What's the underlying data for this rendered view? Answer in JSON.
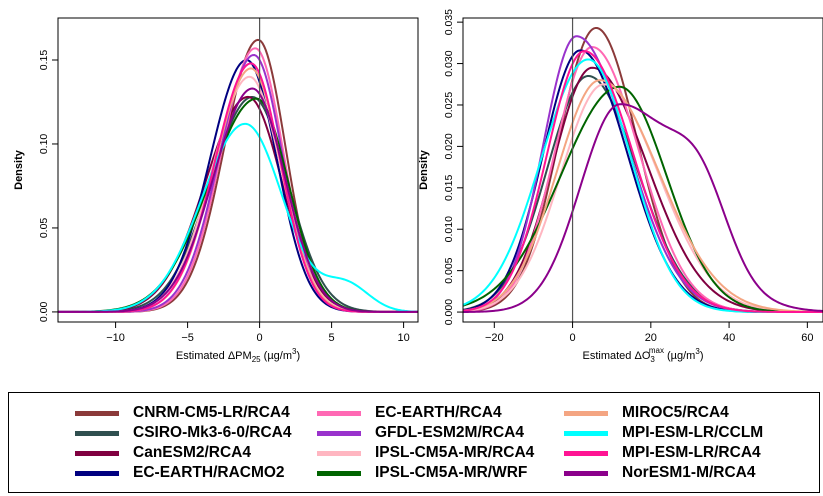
{
  "chart_data": [
    {
      "type": "line",
      "xlabel_prefix": "Estimated ΔPM",
      "xlabel_sub": "25",
      "xlabel_unit": " (µg/m",
      "xlabel_unit_sup": "3",
      "xlabel_close": ")",
      "ylabel": "Density",
      "xlim": [
        -14,
        11
      ],
      "ylim": [
        -0.006,
        0.175
      ],
      "xticks": [
        -10,
        -5,
        0,
        5,
        10
      ],
      "xtick_labels": [
        "−10",
        "−5",
        "0",
        "5",
        "10"
      ],
      "yticks": [
        0,
        0.05,
        0.1,
        0.15
      ],
      "ytick_labels": [
        "0.00",
        "0.05",
        "0.10",
        "0.15"
      ],
      "vline": 0,
      "series": [
        {
          "name": "CNRM-CM5-LR/RCA4",
          "mode": -0.1,
          "peak": 0.162,
          "sl": 2.35,
          "sr": 1.9,
          "tail": 0.0,
          "tailcenter": 0,
          "tailw": 1
        },
        {
          "name": "CSIRO-Mk3-6-0/RCA4",
          "mode": -0.5,
          "peak": 0.128,
          "sl": 2.9,
          "sr": 2.45,
          "tail": 0.0,
          "tailcenter": 0,
          "tailw": 1
        },
        {
          "name": "CanESM2/RCA4",
          "mode": -0.8,
          "peak": 0.128,
          "sl": 2.95,
          "sr": 2.35,
          "tail": 0.0,
          "tailcenter": 0,
          "tailw": 1
        },
        {
          "name": "EC-EARTH/RACMO2",
          "mode": -0.9,
          "peak": 0.15,
          "sl": 2.55,
          "sr": 2.1,
          "tail": 0.0,
          "tailcenter": 0,
          "tailw": 1
        },
        {
          "name": "EC-EARTH/RCA4",
          "mode": -0.3,
          "peak": 0.157,
          "sl": 2.35,
          "sr": 1.95,
          "tail": 0.0,
          "tailcenter": 0,
          "tailw": 1
        },
        {
          "name": "GFDL-ESM2M/RCA4",
          "mode": -0.4,
          "peak": 0.153,
          "sl": 2.4,
          "sr": 2.0,
          "tail": 0.0,
          "tailcenter": 0,
          "tailw": 1
        },
        {
          "name": "IPSL-CM5A-MR/RCA4",
          "mode": -0.7,
          "peak": 0.14,
          "sl": 2.6,
          "sr": 2.2,
          "tail": 0.0,
          "tailcenter": 0,
          "tailw": 1
        },
        {
          "name": "IPSL-CM5A-MR/WRF",
          "mode": -0.2,
          "peak": 0.127,
          "sl": 3.3,
          "sr": 2.2,
          "tail": 0.0,
          "tailcenter": 0,
          "tailw": 1
        },
        {
          "name": "MIROC5/RCA4",
          "mode": -0.6,
          "peak": 0.145,
          "sl": 2.5,
          "sr": 2.1,
          "tail": 0.0,
          "tailcenter": 0,
          "tailw": 1
        },
        {
          "name": "MPI-ESM-LR/CCLM",
          "mode": -1.0,
          "peak": 0.112,
          "sl": 3.0,
          "sr": 2.6,
          "tail": 0.016,
          "tailcenter": 6.0,
          "tailw": 1.6
        },
        {
          "name": "MPI-ESM-LR/RCA4",
          "mode": -0.6,
          "peak": 0.148,
          "sl": 2.5,
          "sr": 2.05,
          "tail": 0.0,
          "tailcenter": 0,
          "tailw": 1
        },
        {
          "name": "NorESM1-M/RCA4",
          "mode": -0.5,
          "peak": 0.133,
          "sl": 2.7,
          "sr": 2.25,
          "tail": 0.0,
          "tailcenter": 0,
          "tailw": 1
        }
      ]
    },
    {
      "type": "line",
      "xlabel_prefix": "Estimated ΔO",
      "xlabel_sub": "3",
      "xlabel_sup": "max",
      "xlabel_unit": " (µg/m",
      "xlabel_unit_sup": "3",
      "xlabel_close": ")",
      "ylabel": "Density",
      "xlim": [
        -28,
        64
      ],
      "ylim": [
        -0.0012,
        0.0355
      ],
      "xticks": [
        -20,
        0,
        20,
        40,
        60
      ],
      "xtick_labels": [
        "−20",
        "0",
        "20",
        "40",
        "60"
      ],
      "yticks": [
        0,
        0.005,
        0.01,
        0.015,
        0.02,
        0.025,
        0.03,
        0.035
      ],
      "ytick_labels": [
        "0.000",
        "0.005",
        "0.010",
        "0.015",
        "0.020",
        "0.025",
        "0.030",
        "0.035"
      ],
      "vline": 0,
      "series": [
        {
          "name": "CNRM-CM5-LR/RCA4",
          "mode": 6,
          "peak": 0.0343,
          "sl": 9.5,
          "sr": 10.5,
          "tail": 0.0,
          "tailcenter": 0,
          "tailw": 1
        },
        {
          "name": "CSIRO-Mk3-6-0/RCA4",
          "mode": 4,
          "peak": 0.0285,
          "sl": 10.5,
          "sr": 12.5,
          "tail": 0.0,
          "tailcenter": 0,
          "tailw": 1
        },
        {
          "name": "CanESM2/RCA4",
          "mode": 5,
          "peak": 0.0295,
          "sl": 10,
          "sr": 14,
          "tail": 0.0,
          "tailcenter": 0,
          "tailw": 1
        },
        {
          "name": "EC-EARTH/RACMO2",
          "mode": 2,
          "peak": 0.0316,
          "sl": 9.5,
          "sr": 12,
          "tail": 0.0,
          "tailcenter": 0,
          "tailw": 1
        },
        {
          "name": "EC-EARTH/RCA4",
          "mode": 5,
          "peak": 0.032,
          "sl": 9.5,
          "sr": 12,
          "tail": 0.0,
          "tailcenter": 0,
          "tailw": 1
        },
        {
          "name": "GFDL-ESM2M/RCA4",
          "mode": 1,
          "peak": 0.0333,
          "sl": 8.5,
          "sr": 13,
          "tail": 0.0,
          "tailcenter": 0,
          "tailw": 1
        },
        {
          "name": "IPSL-CM5A-MR/RCA4",
          "mode": 8,
          "peak": 0.0275,
          "sl": 11,
          "sr": 14,
          "tail": 0.0,
          "tailcenter": 0,
          "tailw": 1
        },
        {
          "name": "IPSL-CM5A-MR/WRF",
          "mode": 12,
          "peak": 0.0272,
          "sl": 15,
          "sr": 12,
          "tail": 0.0,
          "tailcenter": 0,
          "tailw": 1
        },
        {
          "name": "MIROC5/RCA4",
          "mode": 7,
          "peak": 0.028,
          "sl": 11,
          "sr": 15,
          "tail": 0.0,
          "tailcenter": 0,
          "tailw": 1
        },
        {
          "name": "MPI-ESM-LR/CCLM",
          "mode": 4,
          "peak": 0.0305,
          "sl": 12,
          "sr": 11,
          "tail": 0.0,
          "tailcenter": 0,
          "tailw": 1
        },
        {
          "name": "MPI-ESM-LR/RCA4",
          "mode": 3,
          "peak": 0.0315,
          "sl": 9.5,
          "sr": 12.5,
          "tail": 0.0,
          "tailcenter": 0,
          "tailw": 1
        },
        {
          "name": "NorESM1-M/RCA4",
          "mode": 12,
          "peak": 0.025,
          "sl": 10,
          "sr": 16,
          "tail": 0.008,
          "tailcenter": 33,
          "tailw": 7
        }
      ]
    }
  ],
  "legend": [
    {
      "label": "CNRM-CM5-LR/RCA4",
      "color": "#8b3a3a"
    },
    {
      "label": "CSIRO-Mk3-6-0/RCA4",
      "color": "#2f4f4f"
    },
    {
      "label": "CanESM2/RCA4",
      "color": "#800040"
    },
    {
      "label": "EC-EARTH/RACMO2",
      "color": "#000080"
    },
    {
      "label": "EC-EARTH/RCA4",
      "color": "#ff69b4"
    },
    {
      "label": "GFDL-ESM2M/RCA4",
      "color": "#9932cc"
    },
    {
      "label": "IPSL-CM5A-MR/RCA4",
      "color": "#ffb6c1"
    },
    {
      "label": "IPSL-CM5A-MR/WRF",
      "color": "#006400"
    },
    {
      "label": "MIROC5/RCA4",
      "color": "#f4a582"
    },
    {
      "label": "MPI-ESM-LR/CCLM",
      "color": "#00ffff"
    },
    {
      "label": "MPI-ESM-LR/RCA4",
      "color": "#ff1493"
    },
    {
      "label": "NorESM1-M/RCA4",
      "color": "#8b008b"
    }
  ]
}
